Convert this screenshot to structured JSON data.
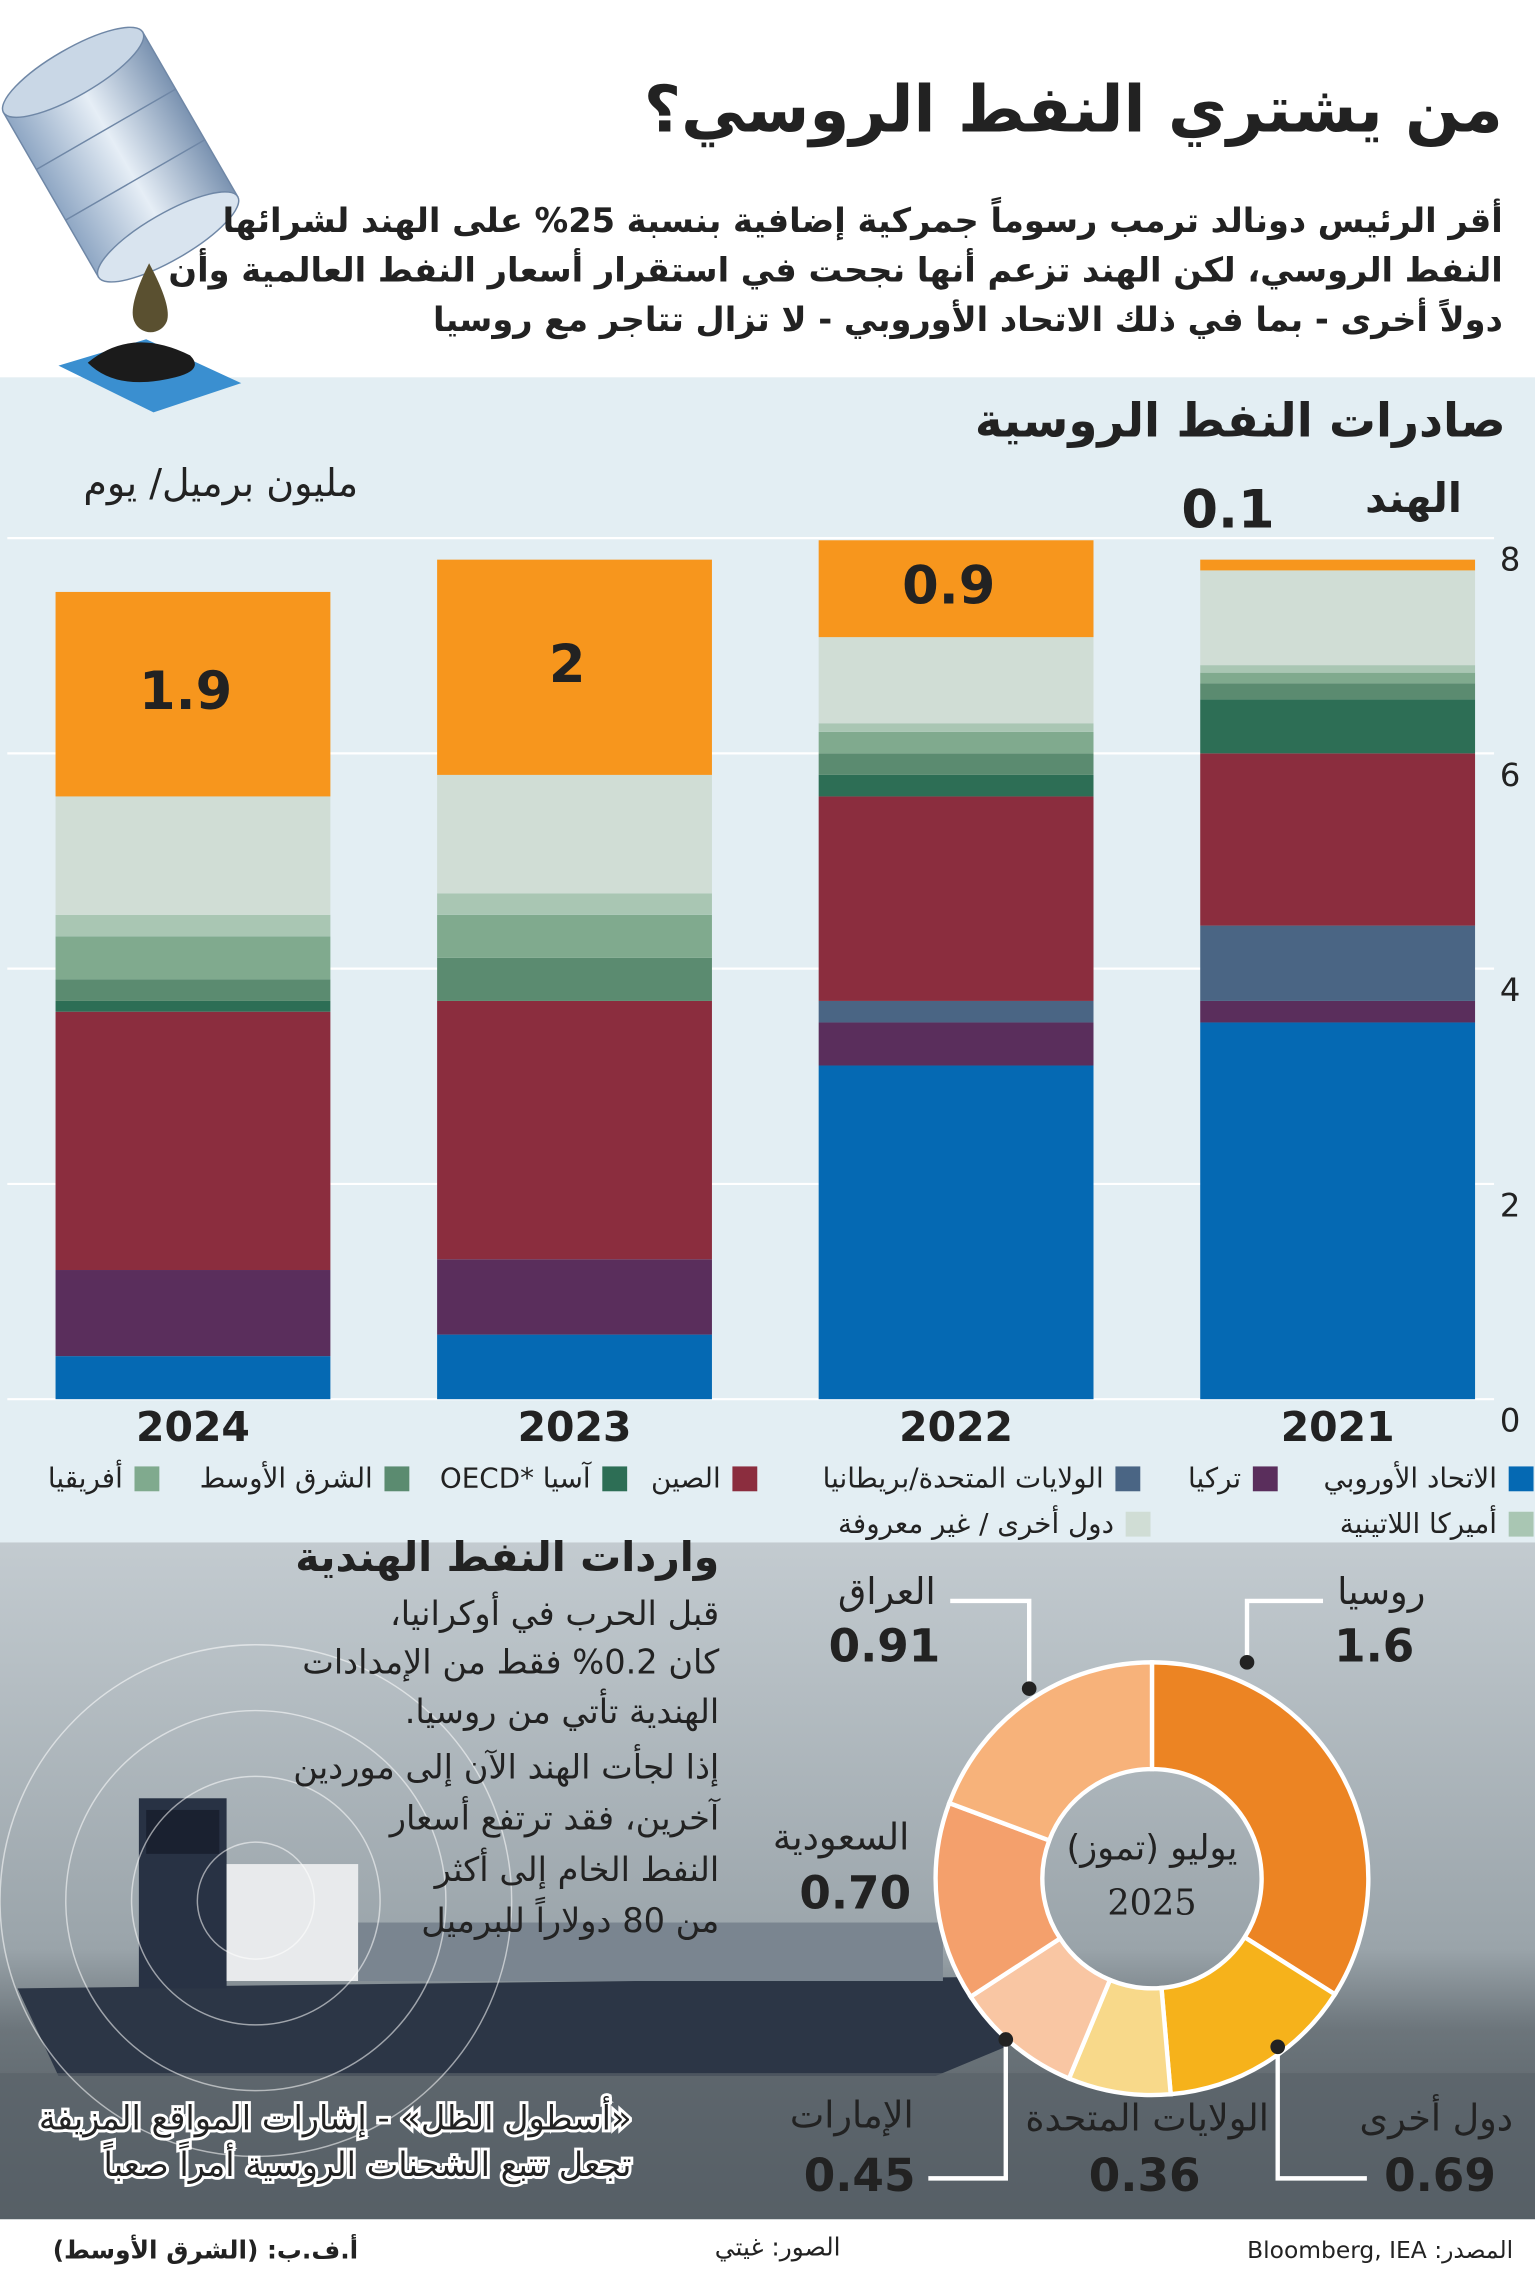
{
  "header": {
    "title": "من يشتري النفط الروسي؟",
    "subtitle": [
      "أقر الرئيس دونالد ترمب رسوماً جمركية إضافية بنسبة 25% على الهند لشرائها",
      "النفط الروسي، لكن الهند تزعم أنها نجحت في استقرار أسعار النفط العالمية وأن",
      "دولاً أخرى - بما في ذلك الاتحاد الأوروبي - لا تزال تتاجر مع روسيا"
    ]
  },
  "chart_data": [
    {
      "type": "bar",
      "stacked": true,
      "title": "صادرات النفط الروسية",
      "y_label": "مليون برميل/ يوم",
      "categories": [
        "2021",
        "2022",
        "2023",
        "2024"
      ],
      "ylim": [
        0,
        8
      ],
      "yticks": [
        0,
        2,
        4,
        6,
        8
      ],
      "grid": true,
      "series": [
        {
          "name": "الاتحاد الأوروبي",
          "color": "#0569b3",
          "values": [
            3.5,
            3.1,
            0.6,
            0.4
          ]
        },
        {
          "name": "تركيا",
          "color": "#5a2e5c",
          "values": [
            0.2,
            0.4,
            0.7,
            0.8
          ]
        },
        {
          "name": "الولايات المتحدة/بريطانيا",
          "color": "#4a6584",
          "values": [
            0.7,
            0.2,
            0,
            0
          ]
        },
        {
          "name": "الصين",
          "color": "#8b2d3e",
          "values": [
            1.6,
            1.9,
            2.4,
            2.4
          ]
        },
        {
          "name": "آسيا *OECD",
          "color": "#2d6e55",
          "values": [
            0.5,
            0.2,
            0,
            0.1
          ]
        },
        {
          "name": "الشرق الأوسط",
          "color": "#5b8b70",
          "values": [
            0.15,
            0.2,
            0.4,
            0.2
          ]
        },
        {
          "name": "أفريقيا",
          "color": "#80aa8e",
          "values": [
            0.1,
            0.2,
            0.4,
            0.4
          ]
        },
        {
          "name": "أميركا اللاتينية",
          "color": "#a9c6b3",
          "values": [
            0.07,
            0.08,
            0.2,
            0.2
          ]
        },
        {
          "name": "دول أخرى / غير معروفة",
          "color": "#d0ddd5",
          "values": [
            0.88,
            0.8,
            1.1,
            1.1
          ]
        },
        {
          "name": "الهند",
          "color": "#f7961d",
          "values": [
            0.1,
            0.9,
            2,
            1.9
          ],
          "data_labels": true,
          "in_legend": false
        }
      ]
    },
    {
      "type": "pie",
      "donut": true,
      "title": "واردات النفط الهندية",
      "description": [
        "قبل الحرب في أوكرانيا،",
        "كان 0.2% فقط من الإمدادات",
        "الهندية تأتي من روسيا.",
        "إذا لجأت الهند الآن إلى موردين",
        "آخرين، فقد ترتفع أسعار",
        "النفط الخام إلى أكثر",
        "من 80 دولاراً للبرميل"
      ],
      "center_label": [
        "يوليو (تموز)",
        "2025"
      ],
      "categories": [
        "روسيا",
        "دول أخرى",
        "الولايات المتحدة",
        "الإمارات",
        "السعودية",
        "العراق"
      ],
      "values": [
        1.6,
        0.69,
        0.36,
        0.45,
        0.7,
        0.91
      ],
      "value_labels": [
        "1.6",
        "0.69",
        "0.36",
        "0.45",
        "0.70",
        "0.91"
      ],
      "colors": [
        "#ec8423",
        "#f6b21b",
        "#f8d98a",
        "#f9c6a3",
        "#f4a06c",
        "#f7b27a"
      ]
    }
  ],
  "caption": [
    "«أسطول الظل» - إشارات المواقع المزيفة",
    "تجعل تتبع الشحنات الروسية أمراً صعباً"
  ],
  "footer": {
    "source": "المصدر: Bloomberg, IEA",
    "photos": "الصور: غيتي",
    "credit": "أ.ف.ب: (الشرق الأوسط)"
  }
}
